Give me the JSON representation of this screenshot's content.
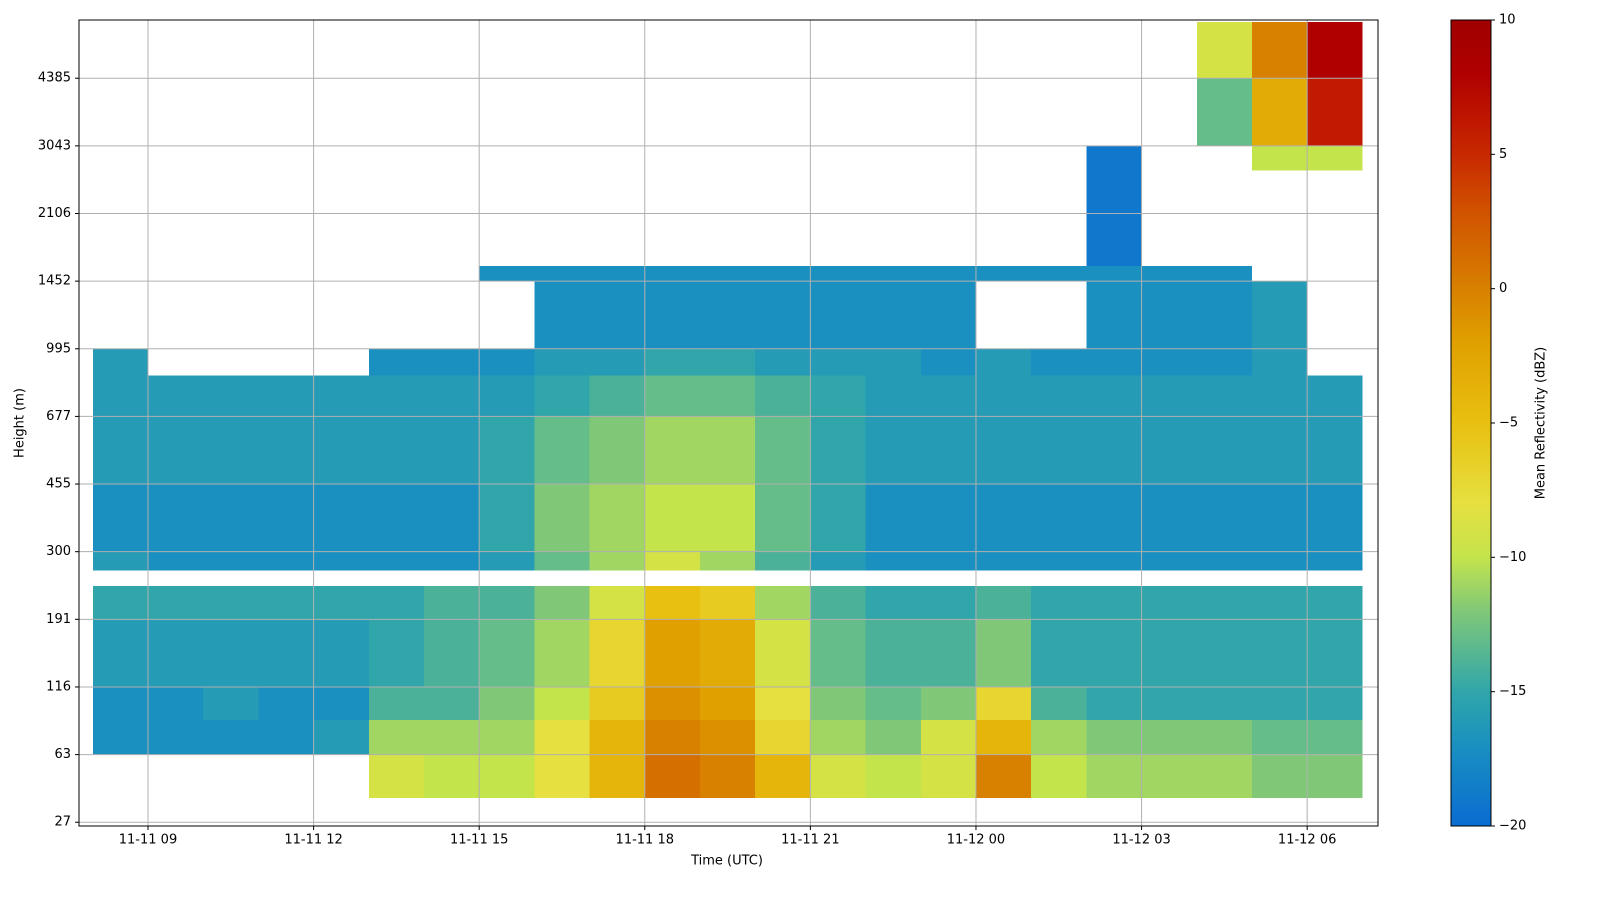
{
  "chart_data": {
    "type": "heatmap",
    "xlabel": "Time (UTC)",
    "ylabel": "Height (m)",
    "xlim": [
      "11-11 07:45",
      "11-12 07:17"
    ],
    "xticks": [
      "11-11 09",
      "11-11 12",
      "11-11 15",
      "11-11 18",
      "11-11 21",
      "11-12 00",
      "11-12 03",
      "11-12 06"
    ],
    "ylim": [
      25,
      5540
    ],
    "yscale": "gate",
    "yticks": [
      27,
      63,
      116,
      191,
      300,
      455,
      677,
      995,
      1452,
      2106,
      3043,
      4385
    ],
    "grid": true,
    "xbins": [
      "11-11 08",
      "11-11 09",
      "11-11 10",
      "11-11 11",
      "11-11 12",
      "11-11 13",
      "11-11 14",
      "11-11 15",
      "11-11 16",
      "11-11 17",
      "11-11 18",
      "11-11 19",
      "11-11 20",
      "11-11 21",
      "11-11 22",
      "11-11 23",
      "11-12 00",
      "11-12 01",
      "11-12 02",
      "11-12 03",
      "11-12 04",
      "11-12 05",
      "11-12 06",
      "11-12 07"
    ],
    "ybins": [
      40,
      63,
      90,
      116,
      191,
      245,
      270,
      300,
      455,
      677,
      870,
      995,
      1452,
      1600,
      2700,
      3043,
      4385,
      5500
    ],
    "z": [
      [
        null,
        null,
        null,
        null,
        null,
        -9,
        -10,
        -10,
        -8,
        -4,
        1,
        0,
        -4,
        -9,
        -10,
        -9,
        0,
        -10,
        -11,
        -11,
        -11,
        -12,
        -12
      ],
      [
        -17,
        -17,
        -17,
        -17,
        -16,
        -11,
        -11,
        -11,
        -8,
        -4,
        0,
        -1,
        -7,
        -11,
        -12,
        -9,
        -4,
        -11,
        -12,
        -12,
        -12,
        -13,
        -13
      ],
      [
        -17,
        -17,
        -16,
        -17,
        -17,
        -14,
        -14,
        -12,
        -10,
        -6,
        -1,
        -2,
        -8,
        -12,
        -13,
        -12,
        -7,
        -14,
        -15,
        -15,
        -15,
        -15,
        -15
      ],
      [
        -16,
        -16,
        -16,
        -16,
        -16,
        -15,
        -14,
        -13,
        -11,
        -7,
        -2,
        -3,
        -9,
        -13,
        -14,
        -14,
        -12,
        -15,
        -15,
        -15,
        -15,
        -15,
        -15
      ],
      [
        -15,
        -15,
        -15,
        -15,
        -15,
        -15,
        -14,
        -14,
        -12,
        -9,
        -5,
        -6,
        -11,
        -14,
        -15,
        -15,
        -14,
        -15,
        -15,
        -15,
        -15,
        -15,
        -15
      ],
      [
        null,
        null,
        null,
        null,
        null,
        null,
        null,
        null,
        null,
        null,
        null,
        null,
        null,
        null,
        null,
        null,
        null,
        null,
        null,
        null,
        null,
        null,
        null
      ],
      [
        -16,
        -17,
        -17,
        -17,
        -17,
        -17,
        -17,
        -16,
        -13,
        -11,
        -9,
        -11,
        -14,
        -16,
        -17,
        -17,
        -17,
        -17,
        -17,
        -17,
        -17,
        -17,
        -17
      ],
      [
        -17,
        -17,
        -17,
        -17,
        -17,
        -17,
        -17,
        -15,
        -12,
        -11,
        -10,
        -10,
        -13,
        -15,
        -17,
        -17,
        -17,
        -17,
        -17,
        -17,
        -17,
        -17,
        -17
      ],
      [
        -16,
        -16,
        -16,
        -16,
        -16,
        -16,
        -16,
        -15,
        -13,
        -12,
        -11,
        -11,
        -13,
        -15,
        -16,
        -16,
        -16,
        -16,
        -16,
        -16,
        -16,
        -16,
        -16
      ],
      [
        -16,
        -16,
        -16,
        -16,
        -16,
        -16,
        -16,
        -16,
        -15,
        -14,
        -13,
        -13,
        -14,
        -15,
        -16,
        -16,
        -16,
        -16,
        -16,
        -16,
        -16,
        -16,
        -16
      ],
      [
        -16,
        null,
        null,
        null,
        null,
        -17,
        -17,
        -17,
        -16,
        -16,
        -15,
        -15,
        -16,
        -16,
        -16,
        -17,
        -16,
        -17,
        -17,
        -17,
        -17,
        -16,
        null
      ],
      [
        null,
        null,
        null,
        null,
        null,
        null,
        null,
        null,
        -17,
        -17,
        -17,
        -17,
        -17,
        -17,
        -17,
        -17,
        null,
        null,
        -17,
        -17,
        -17,
        -16,
        null
      ],
      [
        null,
        null,
        null,
        null,
        null,
        null,
        null,
        -17,
        -17,
        -17,
        -17,
        -17,
        -17,
        -17,
        -17,
        -17,
        -17,
        -17,
        -17,
        -17,
        -17,
        null,
        null
      ],
      [
        null,
        null,
        null,
        null,
        null,
        null,
        null,
        null,
        null,
        null,
        null,
        null,
        null,
        null,
        null,
        null,
        null,
        null,
        -19,
        null,
        null,
        null,
        null
      ],
      [
        null,
        null,
        null,
        null,
        null,
        null,
        null,
        null,
        null,
        null,
        null,
        null,
        null,
        null,
        null,
        null,
        null,
        null,
        -19,
        null,
        null,
        -10,
        -10
      ],
      [
        null,
        null,
        null,
        null,
        null,
        null,
        null,
        null,
        null,
        null,
        null,
        null,
        null,
        null,
        null,
        null,
        null,
        null,
        null,
        null,
        -13,
        -3,
        6
      ],
      [
        null,
        null,
        null,
        null,
        null,
        null,
        null,
        null,
        null,
        null,
        null,
        null,
        null,
        null,
        null,
        null,
        null,
        null,
        null,
        null,
        -9,
        0,
        8
      ]
    ],
    "colorbar": {
      "label": "Mean Reflectivity (dBZ)",
      "lim": [
        -20,
        10
      ],
      "ticks": [
        {
          "value": -20,
          "label": "−20"
        },
        {
          "value": -15,
          "label": "−15"
        },
        {
          "value": -10,
          "label": "−10"
        },
        {
          "value": -5,
          "label": "−5"
        },
        0,
        5,
        10
      ],
      "colormap": [
        [
          -20,
          "#0a6cd2"
        ],
        [
          -17,
          "#1a90c0"
        ],
        [
          -15,
          "#30a6aa"
        ],
        [
          -12,
          "#80c878"
        ],
        [
          -10,
          "#c4e44c"
        ],
        [
          -8,
          "#e6e040"
        ],
        [
          -5,
          "#e8c010"
        ],
        [
          -2,
          "#e0a000"
        ],
        [
          0,
          "#d88000"
        ],
        [
          3,
          "#d05000"
        ],
        [
          5,
          "#c82800"
        ],
        [
          8,
          "#b00000"
        ],
        [
          10,
          "#a00000"
        ]
      ]
    }
  }
}
